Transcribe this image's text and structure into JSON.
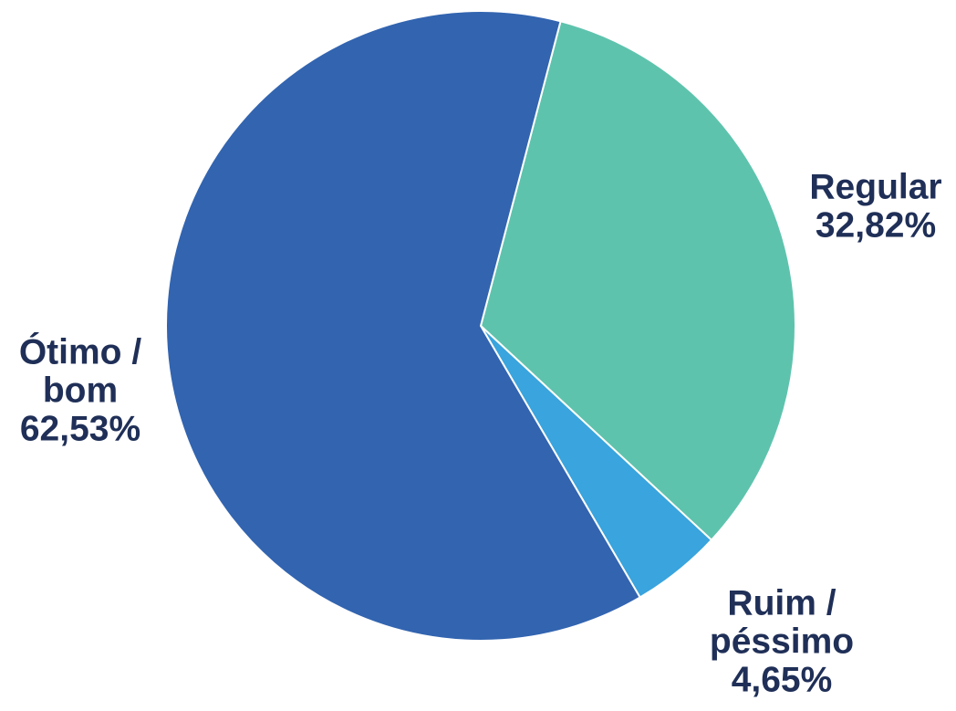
{
  "chart_data": {
    "type": "pie",
    "title": "",
    "legend": "none",
    "slices": [
      {
        "label_lines": [
          "Regular"
        ],
        "value": 32.82,
        "value_label": "32,82%",
        "color": "#5ec3ad"
      },
      {
        "label_lines": [
          "Ruim /",
          "péssimo"
        ],
        "value": 4.65,
        "value_label": "4,65%",
        "color": "#39a4dd"
      },
      {
        "label_lines": [
          "Ótimo /",
          "bom"
        ],
        "value": 62.53,
        "value_label": "62,53%",
        "color": "#3264b0"
      }
    ]
  }
}
